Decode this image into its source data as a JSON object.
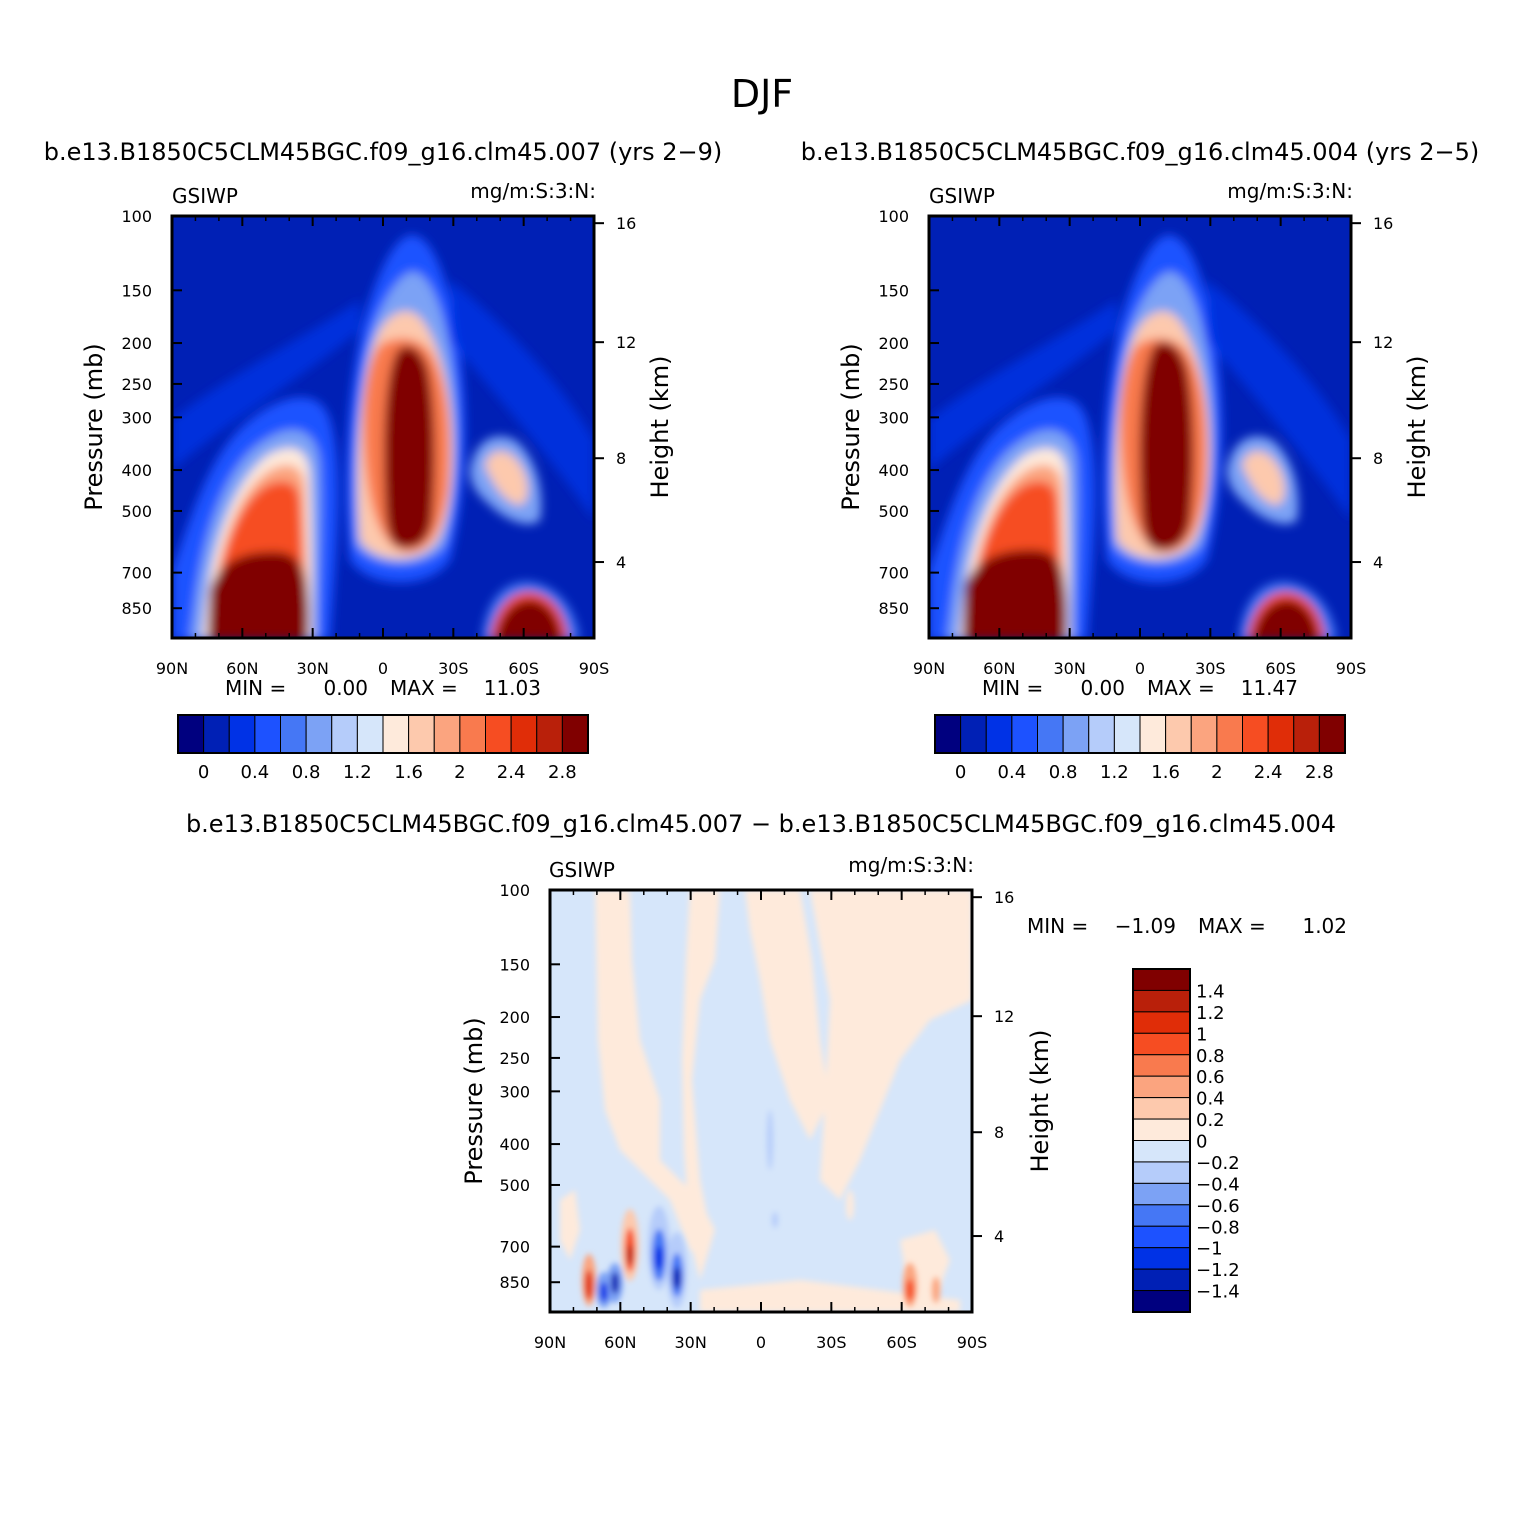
{
  "figure": {
    "title": "DJF",
    "diff_title": "b.e13.B1850C5CLM45BGC.f09_g16.clm45.007 − b.e13.B1850C5CLM45BGC.f09_g16.clm45.004"
  },
  "chart_data": [
    {
      "type": "heatmap",
      "panel": "top-left",
      "title": "b.e13.B1850C5CLM45BGC.f09_g16.clm45.007 (yrs 2−9)",
      "left_label": "GSIWP",
      "right_label": "mg/m:S:3:N:",
      "ylabel": "Pressure (mb)",
      "ylabel_right": "Height (km)",
      "x_ticks": [
        "90N",
        "60N",
        "30N",
        "0",
        "30S",
        "60S",
        "90S"
      ],
      "y_ticks": [
        "100",
        "150",
        "200",
        "250",
        "300",
        "400",
        "500",
        "700",
        "850"
      ],
      "y_ticks_right": [
        "16",
        "12",
        "8",
        "4"
      ],
      "min_label": "MIN =",
      "min_value": "0.00",
      "max_label": "MAX =",
      "max_value": "11.03",
      "colorbar_labels": [
        "0",
        "0.4",
        "0.8",
        "1.2",
        "1.6",
        "2",
        "2.4",
        "2.8"
      ],
      "colors": [
        "#00007f",
        "#0020b5",
        "#0032e6",
        "#1d52ff",
        "#4577f5",
        "#7ca2f5",
        "#b5ccfa",
        "#d6e6fa",
        "#feeadb",
        "#fdc9ad",
        "#fba47f",
        "#f97a4e",
        "#f64d22",
        "#e02d08",
        "#b9200a",
        "#800000"
      ]
    },
    {
      "type": "heatmap",
      "panel": "top-right",
      "title": "b.e13.B1850C5CLM45BGC.f09_g16.clm45.004 (yrs 2−5)",
      "left_label": "GSIWP",
      "right_label": "mg/m:S:3:N:",
      "ylabel": "Pressure (mb)",
      "ylabel_right": "Height (km)",
      "x_ticks": [
        "90N",
        "60N",
        "30N",
        "0",
        "30S",
        "60S",
        "90S"
      ],
      "y_ticks": [
        "100",
        "150",
        "200",
        "250",
        "300",
        "400",
        "500",
        "700",
        "850"
      ],
      "y_ticks_right": [
        "16",
        "12",
        "8",
        "4"
      ],
      "min_label": "MIN =",
      "min_value": "0.00",
      "max_label": "MAX =",
      "max_value": "11.47",
      "colorbar_labels": [
        "0",
        "0.4",
        "0.8",
        "1.2",
        "1.6",
        "2",
        "2.4",
        "2.8"
      ]
    },
    {
      "type": "heatmap",
      "panel": "bottom-difference",
      "left_label": "GSIWP",
      "right_label": "mg/m:S:3:N:",
      "ylabel": "Pressure (mb)",
      "ylabel_right": "Height (km)",
      "x_ticks": [
        "90N",
        "60N",
        "30N",
        "0",
        "30S",
        "60S",
        "90S"
      ],
      "y_ticks": [
        "100",
        "150",
        "200",
        "250",
        "300",
        "400",
        "500",
        "700",
        "850"
      ],
      "y_ticks_right": [
        "16",
        "12",
        "8",
        "4"
      ],
      "min_label": "MIN =",
      "min_value": "−1.09",
      "max_label": "MAX =",
      "max_value": "1.02",
      "colorbar_labels": [
        "1.4",
        "1.2",
        "1",
        "0.8",
        "0.6",
        "0.4",
        "0.2",
        "0",
        "−0.2",
        "−0.4",
        "−0.6",
        "−0.8",
        "−1",
        "−1.2",
        "−1.4"
      ],
      "colors": [
        "#800000",
        "#b9200a",
        "#e02d08",
        "#f64d22",
        "#f97a4e",
        "#fba47f",
        "#fdc9ad",
        "#feeadb",
        "#d6e6fa",
        "#b5ccfa",
        "#7ca2f5",
        "#4577f5",
        "#1d52ff",
        "#0032e6",
        "#0020b5",
        "#00007f"
      ]
    }
  ]
}
